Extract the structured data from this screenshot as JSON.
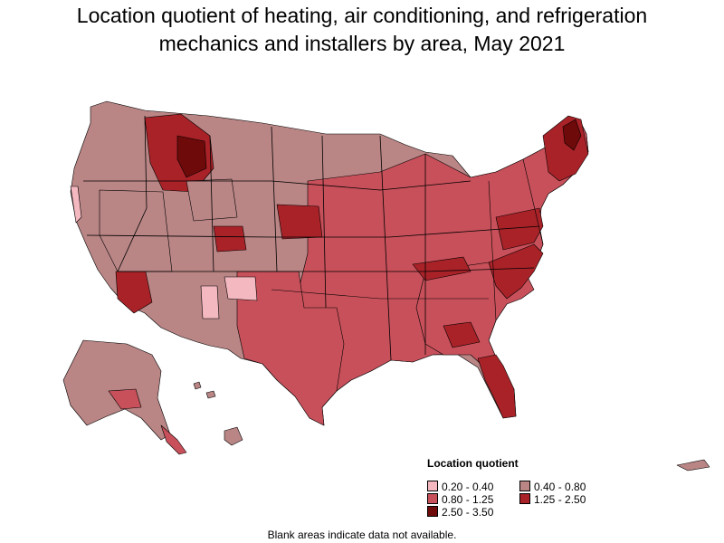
{
  "title_line1": "Location quotient of heating, air conditioning, and refrigeration",
  "title_line2": "mechanics and installers by area, May 2021",
  "legend": {
    "title": "Location quotient",
    "items": [
      {
        "label": "0.20 - 0.40",
        "color": "#f4b8c0"
      },
      {
        "label": "0.40 - 0.80",
        "color": "#b98585"
      },
      {
        "label": "0.80 - 1.25",
        "color": "#c8505a"
      },
      {
        "label": "1.25 - 2.50",
        "color": "#a82228"
      },
      {
        "label": "2.50 - 3.50",
        "color": "#6e0a0a"
      }
    ]
  },
  "footnote": "Blank areas indicate data not available.",
  "colors": {
    "q1": "#f4b8c0",
    "q2": "#b98585",
    "q3": "#c8505a",
    "q4": "#a82228",
    "q5": "#6e0a0a",
    "border": "#000000",
    "background": "#ffffff"
  }
}
